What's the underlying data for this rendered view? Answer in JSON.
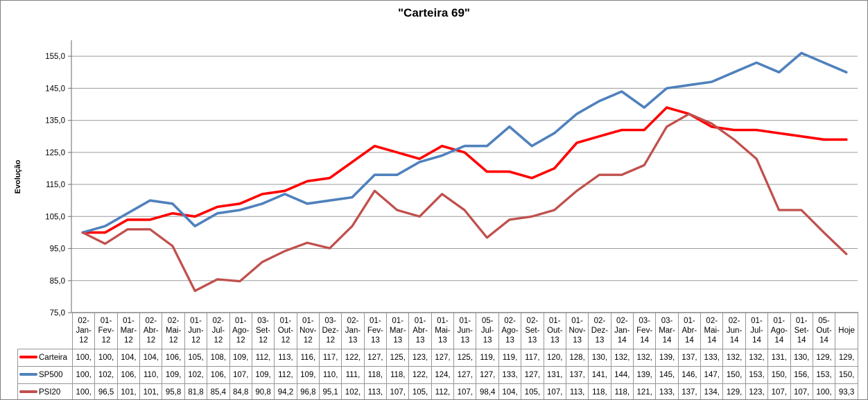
{
  "window": {
    "background": "#FFFFFF",
    "border_color": "#808080",
    "gridline_color": "#9B9B9B",
    "axis_color": "#808080",
    "table_border_color": "#969696",
    "text_color": "#000000"
  },
  "chart": {
    "title": "\"Carteira 69\"",
    "y_axis_title": "Evolução"
  },
  "chart_data": {
    "type": "line",
    "title": "\"Carteira 69\"",
    "xlabel": "",
    "ylabel": "Evolução",
    "ylim": [
      75,
      160
    ],
    "ytick_values": [
      75,
      85,
      95,
      105,
      115,
      125,
      135,
      145,
      155
    ],
    "ytick_labels": [
      "75,0",
      "85,0",
      "95,0",
      "105,0",
      "115,0",
      "125,0",
      "135,0",
      "145,0",
      "155,0"
    ],
    "grid": "horizontal",
    "legend_position": "data-table-left",
    "categories": [
      "02-Jan-12",
      "01-Fev-12",
      "01-Mar-12",
      "02-Abr-12",
      "02-Mai-12",
      "01-Jun-12",
      "02-Jul-12",
      "01-Ago-12",
      "03-Set-12",
      "01-Out-12",
      "01-Nov-12",
      "03-Dez-12",
      "02-Jan-13",
      "01-Fev-13",
      "01-Mar-13",
      "01-Abr-13",
      "01-Mai-13",
      "01-Jun-13",
      "05-Jul-13",
      "02-Ago-13",
      "02-Set-13",
      "01-Out-13",
      "01-Nov-13",
      "02-Dez-13",
      "02-Jan-14",
      "03-Fev-14",
      "03-Mar-14",
      "01-Abr-14",
      "02-Mai-14",
      "02-Jun-14",
      "01-Jul-14",
      "01-Ago-14",
      "01-Set-14",
      "05-Out-14",
      "Hoje"
    ],
    "series": [
      {
        "name": "Carteira",
        "color": "#FF0000",
        "values": [
          100,
          100,
          104,
          104,
          106,
          105,
          108,
          109,
          112,
          113,
          116,
          117,
          122,
          127,
          125,
          123,
          127,
          125,
          119,
          119,
          117,
          120,
          128,
          130,
          132,
          132,
          139,
          137,
          133,
          132,
          132,
          131,
          130,
          129,
          129
        ],
        "display": [
          "100,",
          "100,",
          "104,",
          "104,",
          "106,",
          "105,",
          "108,",
          "109,",
          "112,",
          "113,",
          "116,",
          "117,",
          "122,",
          "127,",
          "125,",
          "123,",
          "127,",
          "125,",
          "119,",
          "119,",
          "117,",
          "120,",
          "128,",
          "130,",
          "132,",
          "132,",
          "139,",
          "137,",
          "133,",
          "132,",
          "132,",
          "131,",
          "130,",
          "129,",
          "129,"
        ]
      },
      {
        "name": "SP500",
        "color": "#4F81BD",
        "values": [
          100,
          102,
          106,
          110,
          109,
          102,
          106,
          107,
          109,
          112,
          109,
          110,
          111,
          118,
          118,
          122,
          124,
          127,
          127,
          133,
          127,
          131,
          137,
          141,
          144,
          139,
          145,
          146,
          147,
          150,
          153,
          150,
          156,
          153,
          150
        ],
        "display": [
          "100,",
          "102,",
          "106,",
          "110,",
          "109,",
          "102,",
          "106,",
          "107,",
          "109,",
          "112,",
          "109,",
          "110,",
          "111,",
          "118,",
          "118,",
          "122,",
          "124,",
          "127,",
          "127,",
          "133,",
          "127,",
          "131,",
          "137,",
          "141,",
          "144,",
          "139,",
          "145,",
          "146,",
          "147,",
          "150,",
          "153,",
          "150,",
          "156,",
          "153,",
          "150,"
        ]
      },
      {
        "name": "PSI20",
        "color": "#C0504D",
        "values": [
          100,
          96.5,
          101,
          101,
          95.8,
          81.8,
          85.4,
          84.8,
          90.8,
          94.2,
          96.8,
          95.1,
          102,
          113,
          107,
          105,
          112,
          107,
          98.4,
          104,
          105,
          107,
          113,
          118,
          118,
          121,
          133,
          137,
          134,
          129,
          123,
          107,
          107,
          100,
          93.3
        ],
        "display": [
          "100,",
          "96,5",
          "101,",
          "101,",
          "95,8",
          "81,8",
          "85,4",
          "84,8",
          "90,8",
          "94,2",
          "96,8",
          "95,1",
          "102,",
          "113,",
          "107,",
          "105,",
          "112,",
          "107,",
          "98,4",
          "104,",
          "105,",
          "107,",
          "113,",
          "118,",
          "118,",
          "121,",
          "133,",
          "137,",
          "134,",
          "129,",
          "123,",
          "107,",
          "107,",
          "100,",
          "93,3"
        ]
      }
    ]
  }
}
